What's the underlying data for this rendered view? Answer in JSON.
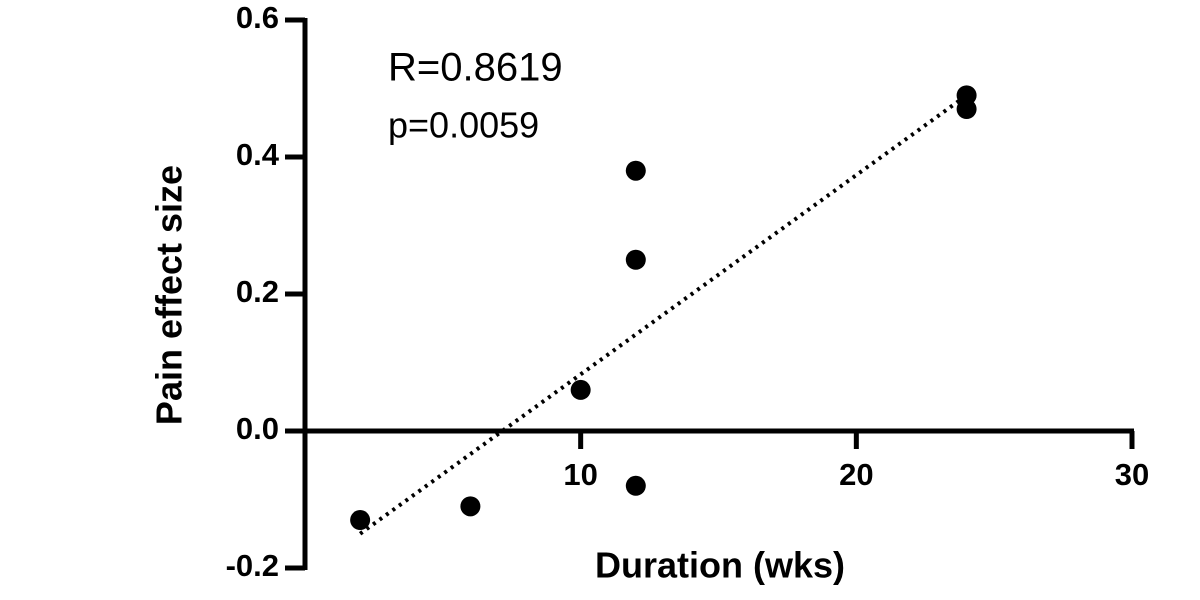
{
  "chart_data": {
    "type": "scatter",
    "xlabel": "Duration (wks)",
    "ylabel": "Pain effect size",
    "annotations": [
      "R=0.8619",
      "p=0.0059"
    ],
    "x": [
      2,
      6,
      10,
      12,
      12,
      12,
      24,
      24
    ],
    "values": [
      -0.13,
      -0.11,
      0.06,
      0.38,
      0.25,
      -0.08,
      0.49,
      0.47
    ],
    "color": "#000000",
    "trendline": {
      "x": [
        2,
        24
      ],
      "values": [
        -0.15,
        0.49
      ]
    },
    "xlim": [
      0,
      30
    ],
    "xticks": [
      10,
      20,
      30
    ],
    "ylim": [
      -0.2,
      0.6
    ],
    "yticks": [
      {
        "value": 0.6,
        "label": "0.6"
      },
      {
        "value": 0.4,
        "label": "0.4"
      },
      {
        "value": 0.2,
        "label": "0.2"
      },
      {
        "value": 0,
        "label": "0.0"
      },
      {
        "value": -0.2,
        "label": "-0.2"
      }
    ]
  }
}
